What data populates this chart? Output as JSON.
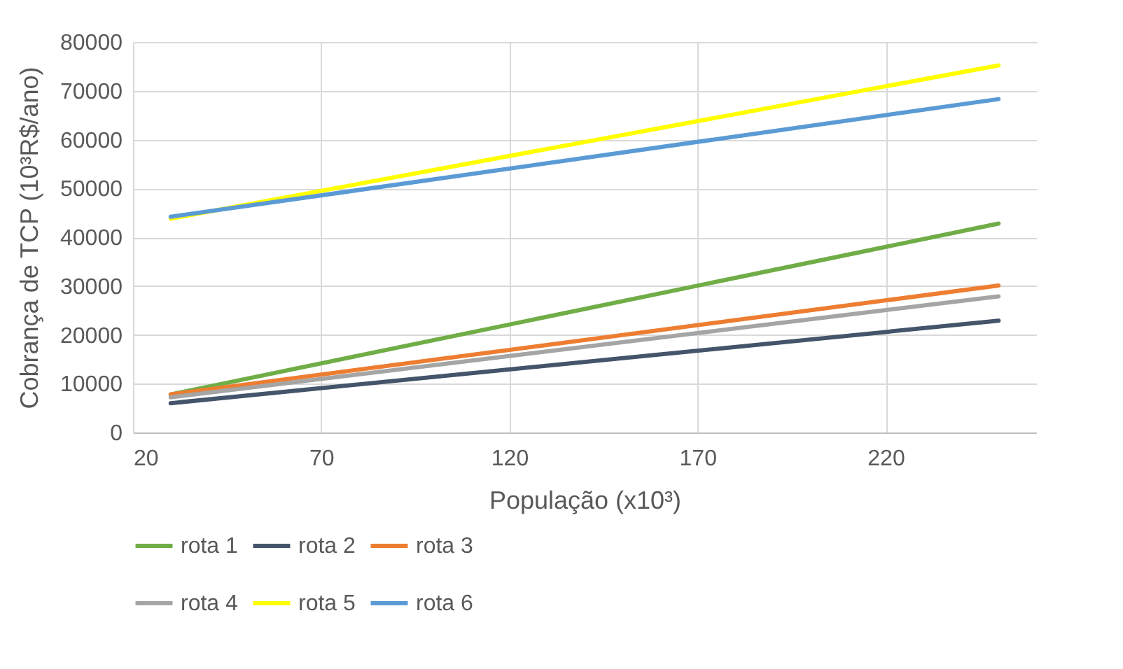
{
  "chart_data": {
    "type": "line",
    "xlabel": "População (x10³)",
    "ylabel": "Cobrança de TCP  (10³R$/ano)",
    "x": [
      30,
      250
    ],
    "xlim": [
      20,
      260
    ],
    "xticks": [
      20,
      70,
      120,
      170,
      220
    ],
    "ylim": [
      0,
      80000
    ],
    "yticks": [
      0,
      10000,
      20000,
      30000,
      40000,
      50000,
      60000,
      70000,
      80000
    ],
    "grid": true,
    "legend": "bottom",
    "marker": "none",
    "series": [
      {
        "name": "rota 1",
        "color": "#70ad47",
        "values": [
          7800,
          42800
        ]
      },
      {
        "name": "rota 2",
        "color": "#44546a",
        "values": [
          6000,
          22900
        ]
      },
      {
        "name": "rota 3",
        "color": "#ed7d31",
        "values": [
          7800,
          30100
        ]
      },
      {
        "name": "rota 4",
        "color": "#a5a5a5",
        "values": [
          7200,
          27900
        ]
      },
      {
        "name": "rota 5",
        "color": "#ffff00",
        "values": [
          43800,
          75200
        ]
      },
      {
        "name": "rota 6",
        "color": "#5b9bd5",
        "values": [
          44200,
          68300
        ]
      }
    ]
  }
}
